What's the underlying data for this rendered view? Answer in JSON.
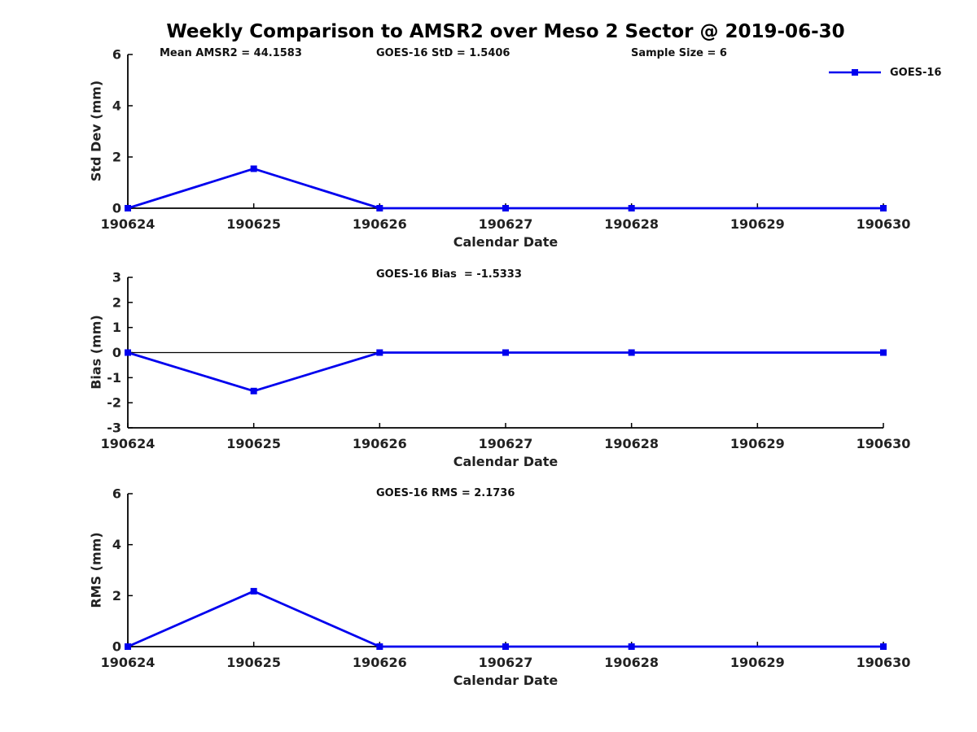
{
  "title": "Weekly Comparison to AMSR2 over Meso 2 Sector @ 2019-06-30",
  "legend": {
    "label": "GOES-16",
    "color": "#0000ee",
    "marker": "square"
  },
  "colors": {
    "series": "#0000ee",
    "axis": "#000000",
    "background": "#ffffff",
    "text": "#222222"
  },
  "chart_data": [
    {
      "type": "line",
      "title": "",
      "ylabel": "Std Dev (mm)",
      "xlabel": "Calendar Date",
      "ylim": [
        0,
        6
      ],
      "yticks": [
        0,
        2,
        4,
        6
      ],
      "x_categories": [
        "190624",
        "190625",
        "190626",
        "190627",
        "190628",
        "190629",
        "190630"
      ],
      "annotations": [
        "Mean AMSR2 = 44.1583",
        "GOES-16 StD = 1.5406",
        "Sample Size = 6"
      ],
      "grid": false,
      "legend_position": "top-right",
      "series": [
        {
          "name": "GOES-16",
          "color": "#0000ee",
          "marker": "square",
          "x": [
            "190624",
            "190625",
            "190626",
            "190627",
            "190628",
            "190630"
          ],
          "y": [
            0,
            1.5406,
            0,
            0,
            0,
            0
          ]
        }
      ]
    },
    {
      "type": "line",
      "title": "",
      "ylabel": "Bias (mm)",
      "xlabel": "Calendar Date",
      "ylim": [
        -3,
        3
      ],
      "yticks": [
        -3,
        -2,
        -1,
        0,
        1,
        2,
        3
      ],
      "zero_line": true,
      "x_categories": [
        "190624",
        "190625",
        "190626",
        "190627",
        "190628",
        "190629",
        "190630"
      ],
      "annotations": [
        "GOES-16 Bias  = -1.5333"
      ],
      "grid": false,
      "series": [
        {
          "name": "GOES-16",
          "color": "#0000ee",
          "marker": "square",
          "x": [
            "190624",
            "190625",
            "190626",
            "190627",
            "190628",
            "190630"
          ],
          "y": [
            0,
            -1.5333,
            0,
            0,
            0,
            0
          ]
        }
      ]
    },
    {
      "type": "line",
      "title": "",
      "ylabel": "RMS (mm)",
      "xlabel": "Calendar Date",
      "ylim": [
        0,
        6
      ],
      "yticks": [
        0,
        2,
        4,
        6
      ],
      "x_categories": [
        "190624",
        "190625",
        "190626",
        "190627",
        "190628",
        "190629",
        "190630"
      ],
      "annotations": [
        "GOES-16 RMS = 2.1736"
      ],
      "grid": false,
      "series": [
        {
          "name": "GOES-16",
          "color": "#0000ee",
          "marker": "square",
          "x": [
            "190624",
            "190625",
            "190626",
            "190627",
            "190628",
            "190630"
          ],
          "y": [
            0,
            2.1736,
            0,
            0,
            0,
            0
          ]
        }
      ]
    }
  ]
}
